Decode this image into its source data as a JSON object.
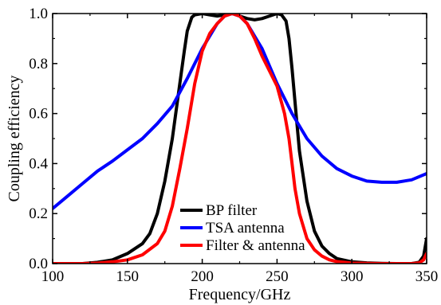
{
  "chart_data": {
    "type": "line",
    "title": "",
    "xlabel": "Frequency/GHz",
    "ylabel": "Coupling efficiency",
    "xlim": [
      100,
      350
    ],
    "ylim": [
      0.0,
      1.0
    ],
    "x_ticks": [
      100,
      150,
      200,
      250,
      300,
      350
    ],
    "x_tick_labels": [
      "100",
      "150",
      "200",
      "250",
      "300",
      "350"
    ],
    "y_ticks": [
      0.0,
      0.2,
      0.4,
      0.6,
      0.8,
      1.0
    ],
    "y_tick_labels": [
      "0.0",
      "0.2",
      "0.4",
      "0.6",
      "0.8",
      "1.0"
    ],
    "grid": false,
    "legend_position": "bottom-center",
    "series": [
      {
        "name": "BP filter",
        "color": "#000000",
        "x": [
          100,
          120,
          130,
          140,
          150,
          160,
          165,
          170,
          175,
          180,
          185,
          188,
          190,
          193,
          195,
          200,
          205,
          210,
          215,
          220,
          225,
          230,
          235,
          240,
          245,
          250,
          253,
          256,
          258,
          260,
          263,
          265,
          270,
          275,
          280,
          285,
          290,
          300,
          310,
          320,
          330,
          340,
          345,
          348,
          350
        ],
        "y": [
          0.0,
          0.0,
          0.005,
          0.015,
          0.04,
          0.08,
          0.12,
          0.2,
          0.33,
          0.5,
          0.72,
          0.85,
          0.93,
          0.985,
          0.995,
          1.0,
          0.995,
          0.99,
          0.995,
          1.0,
          0.99,
          0.98,
          0.975,
          0.98,
          0.99,
          1.0,
          0.995,
          0.97,
          0.9,
          0.78,
          0.58,
          0.45,
          0.25,
          0.13,
          0.07,
          0.04,
          0.02,
          0.007,
          0.003,
          0.001,
          0.0,
          0.0,
          0.005,
          0.03,
          0.1
        ]
      },
      {
        "name": "TSA antenna",
        "color": "#0000ff",
        "x": [
          100,
          110,
          120,
          130,
          140,
          150,
          160,
          170,
          180,
          190,
          200,
          210,
          215,
          220,
          225,
          230,
          240,
          250,
          260,
          270,
          280,
          290,
          300,
          310,
          320,
          330,
          340,
          350
        ],
        "y": [
          0.22,
          0.27,
          0.32,
          0.37,
          0.41,
          0.455,
          0.5,
          0.56,
          0.63,
          0.74,
          0.86,
          0.96,
          0.99,
          1.0,
          0.99,
          0.96,
          0.86,
          0.72,
          0.6,
          0.5,
          0.43,
          0.38,
          0.35,
          0.33,
          0.325,
          0.325,
          0.335,
          0.36
        ]
      },
      {
        "name": "Filter & antenna",
        "color": "#ff0000",
        "x": [
          100,
          120,
          130,
          140,
          150,
          160,
          170,
          175,
          180,
          185,
          190,
          195,
          200,
          205,
          210,
          215,
          220,
          225,
          230,
          235,
          240,
          245,
          250,
          255,
          258,
          260,
          262,
          265,
          270,
          275,
          280,
          285,
          290,
          300,
          310,
          320,
          330,
          340,
          345,
          348,
          350
        ],
        "y": [
          0.0,
          0.0,
          0.002,
          0.007,
          0.015,
          0.035,
          0.08,
          0.13,
          0.23,
          0.38,
          0.54,
          0.72,
          0.85,
          0.92,
          0.96,
          0.99,
          1.0,
          0.99,
          0.96,
          0.9,
          0.83,
          0.77,
          0.71,
          0.6,
          0.5,
          0.4,
          0.3,
          0.2,
          0.1,
          0.055,
          0.03,
          0.015,
          0.008,
          0.002,
          0.001,
          0.0,
          0.0,
          0.0,
          0.003,
          0.015,
          0.04
        ]
      }
    ]
  }
}
